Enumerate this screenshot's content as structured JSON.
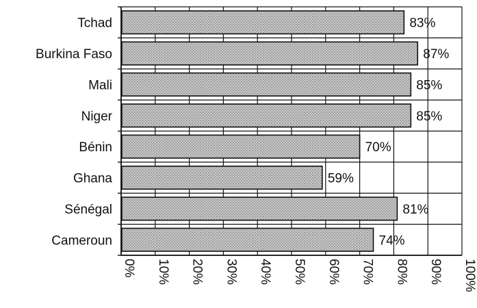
{
  "chart_data": {
    "type": "bar",
    "orientation": "horizontal",
    "categories": [
      "Tchad",
      "Burkina Faso",
      "Mali",
      "Niger",
      "Bénin",
      "Ghana",
      "Sénégal",
      "Cameroun"
    ],
    "values": [
      83,
      87,
      85,
      85,
      70,
      59,
      81,
      74
    ],
    "value_labels": [
      "83%",
      "87%",
      "85%",
      "85%",
      "70%",
      "59%",
      "81%",
      "74%"
    ],
    "xlim": [
      0,
      100
    ],
    "x_ticks": [
      "0%",
      "10%",
      "20%",
      "30%",
      "40%",
      "50%",
      "60%",
      "70%",
      "80%",
      "90%",
      "100%"
    ],
    "grid": true,
    "bar_fill": "#b8b8b8",
    "bar_stroke": "#111111"
  }
}
